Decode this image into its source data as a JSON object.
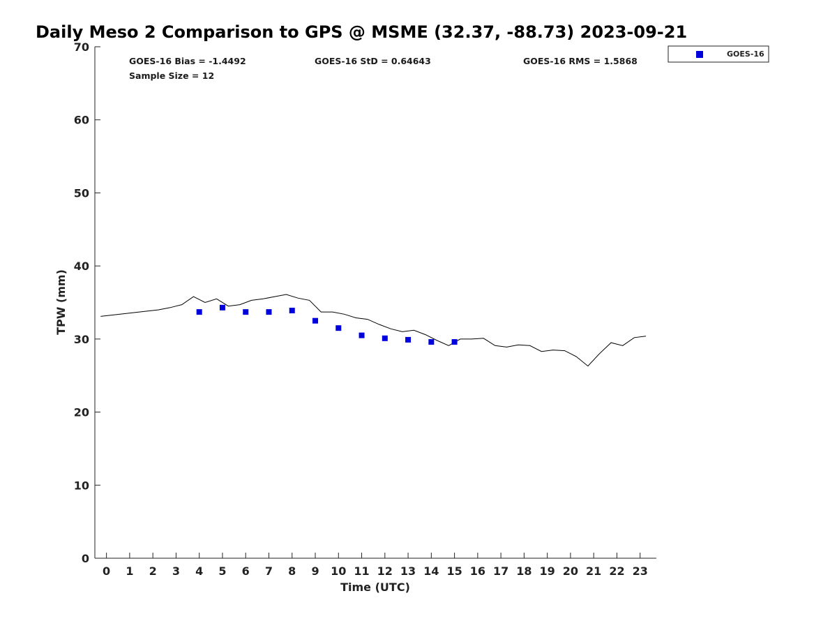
{
  "chart_data": {
    "type": "line+scatter",
    "title": "Daily Meso 2 Comparison to GPS @ MSME (32.37, -88.73) 2023-09-21",
    "xlabel": "Time (UTC)",
    "ylabel": "TPW (mm)",
    "xlim": [
      -0.5,
      23.7
    ],
    "ylim": [
      0,
      70
    ],
    "x_ticks": [
      0,
      1,
      2,
      3,
      4,
      5,
      6,
      7,
      8,
      9,
      10,
      11,
      12,
      13,
      14,
      15,
      16,
      17,
      18,
      19,
      20,
      21,
      22,
      23
    ],
    "y_ticks": [
      0,
      10,
      20,
      30,
      40,
      50,
      60,
      70
    ],
    "grid": false,
    "legend": {
      "position": "top-right-outside",
      "entries": [
        "GOES-16"
      ]
    },
    "stats": {
      "bias": "GOES-16 Bias = -1.4492",
      "std": "GOES-16 StD = 0.64643",
      "rms": "GOES-16 RMS = 1.5868",
      "sample": "Sample Size = 12"
    },
    "series": [
      {
        "name": "GPS",
        "kind": "line",
        "color": "#000000",
        "x": [
          -0.25,
          2.25,
          2.75,
          3.25,
          3.75,
          4.25,
          4.75,
          5.25,
          5.75,
          6.25,
          6.75,
          7.25,
          7.75,
          8.25,
          8.75,
          9.25,
          9.75,
          10.25,
          10.75,
          11.25,
          11.75,
          12.25,
          12.75,
          13.25,
          13.75,
          14.25,
          14.75,
          15.25,
          15.75,
          16.25,
          16.75,
          17.25,
          17.75,
          18.25,
          18.75,
          19.25,
          19.75,
          20.25,
          20.75,
          21.25,
          21.75,
          22.25,
          22.75,
          23.25
        ],
        "y": [
          33.1,
          34.0,
          34.3,
          34.7,
          35.8,
          35.0,
          35.5,
          34.5,
          34.7,
          35.3,
          35.5,
          35.8,
          36.1,
          35.6,
          35.3,
          33.7,
          33.7,
          33.4,
          32.9,
          32.7,
          32.0,
          31.4,
          31.0,
          31.2,
          30.6,
          29.8,
          29.1,
          30.0,
          30.0,
          30.1,
          29.1,
          28.9,
          29.2,
          29.1,
          28.3,
          28.5,
          28.4,
          27.6,
          26.3,
          28.0,
          29.5,
          29.1,
          30.2,
          30.4
        ]
      },
      {
        "name": "GOES-16",
        "kind": "scatter",
        "color": "#0000dd",
        "x": [
          4,
          5,
          6,
          7,
          8,
          9,
          10,
          11,
          12,
          13,
          14,
          15
        ],
        "y": [
          33.7,
          34.3,
          33.7,
          33.7,
          33.9,
          32.5,
          31.5,
          30.5,
          30.1,
          29.9,
          29.6,
          29.6
        ]
      }
    ]
  }
}
